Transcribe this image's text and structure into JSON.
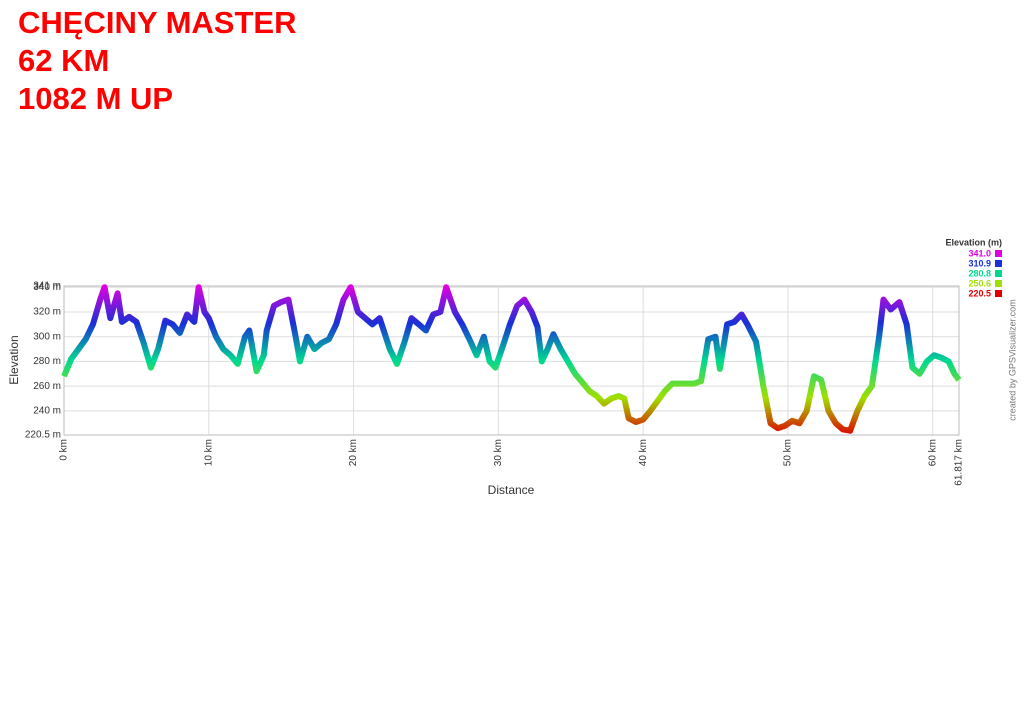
{
  "chart_data": {
    "type": "line",
    "title_lines": [
      "CHĘCINY MASTER",
      "62 KM",
      "1082 M UP"
    ],
    "xlabel": "Distance",
    "ylabel": "Elevation",
    "legend_title": "Elevation (m)",
    "credit": "created by GPSVisualizer.com",
    "xlim": [
      0,
      61.817
    ],
    "ylim": [
      220.5,
      341
    ],
    "xticks": [
      {
        "value": 0,
        "label": "0 km"
      },
      {
        "value": 10,
        "label": "10 km"
      },
      {
        "value": 20,
        "label": "20 km"
      },
      {
        "value": 30,
        "label": "30 km"
      },
      {
        "value": 40,
        "label": "40 km"
      },
      {
        "value": 50,
        "label": "50 km"
      },
      {
        "value": 60,
        "label": "60 km"
      },
      {
        "value": 61.817,
        "label": "61.817 km"
      }
    ],
    "yticks": [
      {
        "value": 220.5,
        "label": "220.5 m"
      },
      {
        "value": 240,
        "label": "240 m"
      },
      {
        "value": 260,
        "label": "260 m"
      },
      {
        "value": 280,
        "label": "280 m"
      },
      {
        "value": 300,
        "label": "300 m"
      },
      {
        "value": 320,
        "label": "320 m"
      },
      {
        "value": 340,
        "label": "340 m"
      },
      {
        "value": 341,
        "label": "341 m"
      }
    ],
    "grid": true,
    "color_scale": [
      {
        "value": 341,
        "label": "341.0",
        "color": "#e000e0"
      },
      {
        "value": 310.9,
        "label": "310.9",
        "color": "#1a2fd6"
      },
      {
        "value": 280.8,
        "label": "280.8",
        "color": "#00d890"
      },
      {
        "value": 250.6,
        "label": "250.6",
        "color": "#a0e000"
      },
      {
        "value": 220.5,
        "label": "220.5",
        "color": "#e00000"
      }
    ],
    "series": [
      {
        "name": "Elevation",
        "x": [
          0,
          0.5,
          1,
          1.5,
          2,
          2.5,
          2.8,
          3.2,
          3.7,
          4,
          4.5,
          5,
          5.5,
          6,
          6.5,
          7,
          7.5,
          8,
          8.5,
          9,
          9.3,
          9.7,
          10,
          10.5,
          11,
          11.5,
          12,
          12.5,
          12.8,
          13.3,
          13.8,
          14,
          14.5,
          15,
          15.5,
          16,
          16.3,
          16.8,
          17.3,
          17.8,
          18.3,
          18.8,
          19.3,
          19.8,
          20.3,
          20.8,
          21.3,
          21.8,
          22,
          22.5,
          23,
          23.5,
          24,
          24.5,
          25,
          25.5,
          26,
          26.4,
          27,
          27.5,
          28,
          28.5,
          29,
          29.4,
          29.8,
          30.3,
          30.8,
          31.3,
          31.8,
          32.3,
          32.7,
          33,
          33.4,
          33.8,
          34.3,
          34.8,
          35.3,
          35.8,
          36.3,
          36.8,
          37.3,
          37.8,
          38.3,
          38.7,
          39,
          39.5,
          40,
          40.5,
          41,
          41.5,
          42,
          42.5,
          43,
          43.5,
          44,
          44.5,
          45,
          45.3,
          45.8,
          46.3,
          46.8,
          47.2,
          47.8,
          48.3,
          48.8,
          49.3,
          49.8,
          50.3,
          50.8,
          51.3,
          51.8,
          52.3,
          52.8,
          53.3,
          53.8,
          54.3,
          54.8,
          55.3,
          55.8,
          56.3,
          56.6,
          57.1,
          57.7,
          58.2,
          58.6,
          59.1,
          59.6,
          60.1,
          60.6,
          61.1,
          61.5,
          61.817
        ],
        "values": [
          268,
          282,
          290,
          298,
          310,
          330,
          340,
          315,
          335,
          312,
          316,
          312,
          295,
          275,
          290,
          313,
          310,
          303,
          318,
          312,
          340,
          320,
          315,
          300,
          290,
          285,
          278,
          300,
          305,
          272,
          285,
          305,
          325,
          328,
          330,
          300,
          280,
          300,
          290,
          295,
          298,
          310,
          330,
          340,
          320,
          315,
          310,
          315,
          308,
          290,
          278,
          295,
          315,
          310,
          305,
          318,
          320,
          340,
          320,
          310,
          298,
          285,
          300,
          280,
          275,
          292,
          310,
          325,
          330,
          320,
          308,
          280,
          290,
          302,
          290,
          280,
          270,
          263,
          256,
          252,
          246,
          250,
          252,
          250,
          234,
          231,
          233,
          240,
          248,
          256,
          262,
          262,
          262,
          262,
          264,
          298,
          300,
          274,
          310,
          312,
          318,
          310,
          296,
          260,
          230,
          226,
          228,
          232,
          230,
          240,
          268,
          265,
          240,
          230,
          225,
          224,
          240,
          252,
          260,
          300,
          330,
          322,
          328,
          310,
          275,
          270,
          280,
          285,
          283,
          280,
          270,
          265
        ]
      }
    ]
  }
}
